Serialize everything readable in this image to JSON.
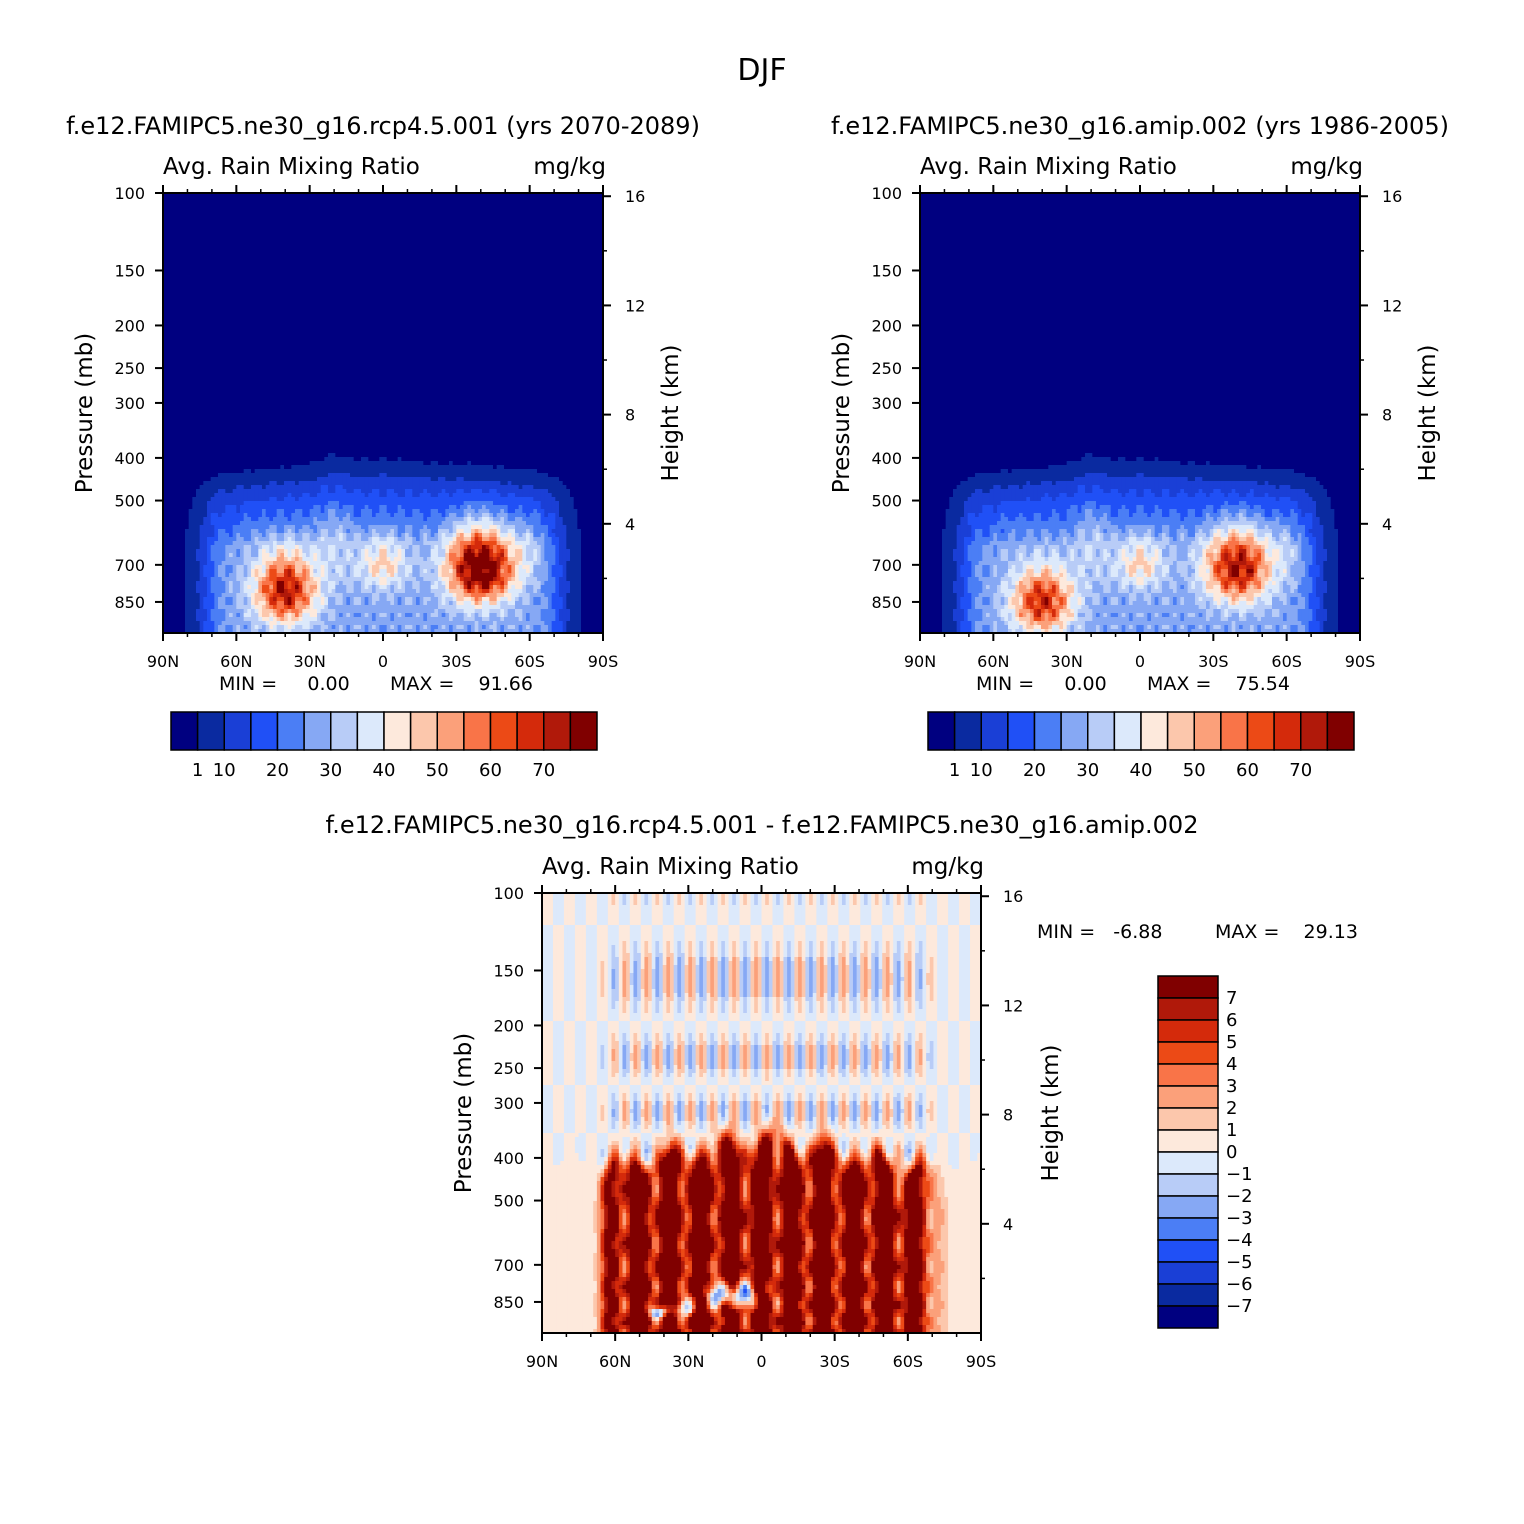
{
  "page": {
    "title": "DJF"
  },
  "chart_data": [
    {
      "type": "heatmap",
      "panel": "top-left",
      "title": "f.e12.FAMIPC5.ne30_g16.rcp4.5.001 (yrs 2070-2089)",
      "variable_label": "Avg. Rain Mixing Ratio",
      "units": "mg/kg",
      "xlabel": "",
      "ylabel_left": "Pressure (mb)",
      "ylabel_right": "Height (km)",
      "x_ticks": [
        "90N",
        "60N",
        "30N",
        "0",
        "30S",
        "60S",
        "90S"
      ],
      "x_range": [
        90,
        -90
      ],
      "y_ticks_pressure": [
        100,
        150,
        200,
        250,
        300,
        400,
        500,
        700,
        850
      ],
      "y_ticks_height": [
        16,
        12,
        8,
        4
      ],
      "y_range_mb": [
        1000,
        100
      ],
      "min_text": "MIN =     0.00",
      "max_text": "MAX =    91.66",
      "min": 0.0,
      "max": 91.66,
      "colorbar_labels": [
        "1",
        "10",
        "20",
        "30",
        "40",
        "50",
        "60",
        "70"
      ],
      "colorbar_orientation": "horizontal",
      "maxima": [
        {
          "lat": 40,
          "p_mb": 800,
          "value": 75
        },
        {
          "lat": -40,
          "p_mb": 710,
          "value": 91.66
        }
      ]
    },
    {
      "type": "heatmap",
      "panel": "top-right",
      "title": "f.e12.FAMIPC5.ne30_g16.amip.002 (yrs 1986-2005)",
      "variable_label": "Avg. Rain Mixing Ratio",
      "units": "mg/kg",
      "xlabel": "",
      "ylabel_left": "Pressure (mb)",
      "ylabel_right": "Height (km)",
      "x_ticks": [
        "90N",
        "60N",
        "30N",
        "0",
        "30S",
        "60S",
        "90S"
      ],
      "x_range": [
        90,
        -90
      ],
      "y_ticks_pressure": [
        100,
        150,
        200,
        250,
        300,
        400,
        500,
        700,
        850
      ],
      "y_ticks_height": [
        16,
        12,
        8,
        4
      ],
      "y_range_mb": [
        1000,
        100
      ],
      "min_text": "MIN =     0.00",
      "max_text": "MAX =    75.54",
      "min": 0.0,
      "max": 75.54,
      "colorbar_labels": [
        "1",
        "10",
        "20",
        "30",
        "40",
        "50",
        "60",
        "70"
      ],
      "colorbar_orientation": "horizontal",
      "maxima": [
        {
          "lat": 40,
          "p_mb": 850,
          "value": 70
        },
        {
          "lat": -40,
          "p_mb": 710,
          "value": 75.54
        }
      ]
    },
    {
      "type": "heatmap",
      "panel": "bottom-center",
      "title": "f.e12.FAMIPC5.ne30_g16.rcp4.5.001 - f.e12.FAMIPC5.ne30_g16.amip.002",
      "variable_label": "Avg. Rain Mixing Ratio",
      "units": "mg/kg",
      "xlabel": "",
      "ylabel_left": "Pressure (mb)",
      "ylabel_right": "Height (km)",
      "x_ticks": [
        "90N",
        "60N",
        "30N",
        "0",
        "30S",
        "60S",
        "90S"
      ],
      "x_range": [
        90,
        -90
      ],
      "y_ticks_pressure": [
        100,
        150,
        200,
        250,
        300,
        400,
        500,
        700,
        850
      ],
      "y_ticks_height": [
        16,
        12,
        8,
        4
      ],
      "y_range_mb": [
        1000,
        100
      ],
      "min_text": "MIN =   -6.88",
      "max_text": "MAX =    29.13",
      "min": -6.88,
      "max": 29.13,
      "colorbar_labels": [
        "7",
        "6",
        "5",
        "4",
        "3",
        "2",
        "1",
        "0",
        "-1",
        "-2",
        "-3",
        "-4",
        "-5",
        "-6",
        "-7"
      ],
      "colorbar_orientation": "vertical",
      "notable_features": [
        {
          "desc": "positive band",
          "lat_from": 65,
          "lat_to": -70,
          "p_mb_from": 900,
          "p_mb_to": 380,
          "value": 7
        },
        {
          "desc": "negative patch",
          "lat": 42,
          "p_mb": 900,
          "value": -6.88
        }
      ]
    }
  ],
  "palettes": {
    "sequential": [
      "#000080",
      "#0a2aa0",
      "#1a3fd6",
      "#2050f6",
      "#4b7ef5",
      "#86a8f4",
      "#b8ccf7",
      "#dce9fb",
      "#fde9dc",
      "#fcc7ac",
      "#fba07a",
      "#f97448",
      "#ec4a16",
      "#d42a0b",
      "#b0190a",
      "#800000"
    ],
    "diverging": [
      "#000080",
      "#0a2aa0",
      "#1a3fd6",
      "#2050f6",
      "#4b7ef5",
      "#86a8f4",
      "#b8ccf7",
      "#dce9fb",
      "#fde9dc",
      "#fcc7ac",
      "#fba07a",
      "#f97448",
      "#ec4a16",
      "#d42a0b",
      "#b0190a",
      "#800000"
    ]
  }
}
